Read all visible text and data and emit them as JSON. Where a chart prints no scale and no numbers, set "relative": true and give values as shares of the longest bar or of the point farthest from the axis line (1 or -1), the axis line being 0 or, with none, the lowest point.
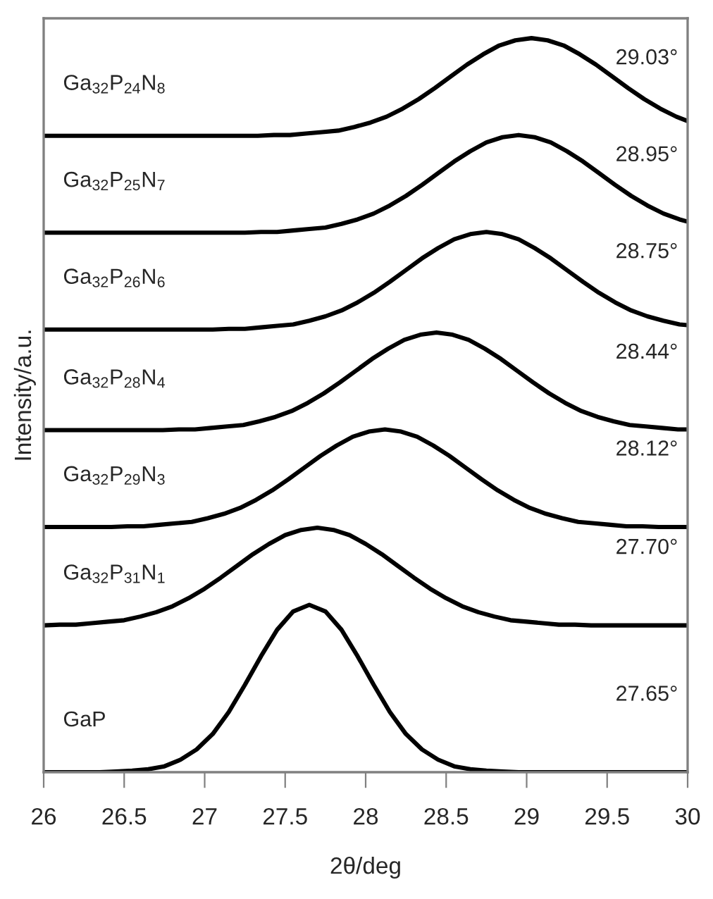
{
  "chart_data": {
    "type": "line",
    "relative": true,
    "xlabel": "2θ/deg",
    "ylabel": "Intensity/a.u.",
    "xlim": [
      26,
      30
    ],
    "xticks": [
      26,
      26.5,
      27,
      27.5,
      28,
      28.5,
      29,
      29.5,
      30
    ],
    "line_style": "solid",
    "series": [
      {
        "name": "Ga$_{32}$P$_{24}$N$_{8}$",
        "color": "#000000",
        "x": [
          26,
          27.33,
          27.43,
          27.53,
          27.63,
          27.73,
          27.83,
          27.93,
          28.03,
          28.13,
          28.23,
          28.33,
          28.43,
          28.53,
          28.63,
          28.73,
          28.83,
          28.93,
          29.03,
          29.13,
          29.23,
          29.33,
          29.43,
          29.53,
          29.63,
          29.73,
          29.83,
          29.93,
          30
        ],
        "values": [
          0.867,
          0.867,
          0.868,
          0.868,
          0.87,
          0.872,
          0.874,
          0.879,
          0.885,
          0.893,
          0.904,
          0.917,
          0.932,
          0.948,
          0.964,
          0.978,
          0.99,
          0.997,
          1.0,
          0.997,
          0.99,
          0.978,
          0.964,
          0.948,
          0.932,
          0.917,
          0.904,
          0.893,
          0.887
        ]
      },
      {
        "name": "Ga$_{32}$P$_{25}$N$_{7}$",
        "color": "#000000",
        "x": [
          26,
          27.25,
          27.35,
          27.45,
          27.55,
          27.65,
          27.75,
          27.85,
          27.95,
          28.05,
          28.15,
          28.25,
          28.35,
          28.45,
          28.55,
          28.65,
          28.75,
          28.85,
          28.95,
          29.05,
          29.15,
          29.25,
          29.35,
          29.45,
          29.55,
          29.65,
          29.75,
          29.85,
          29.95,
          30
        ],
        "values": [
          0.735,
          0.735,
          0.736,
          0.736,
          0.738,
          0.74,
          0.742,
          0.747,
          0.753,
          0.761,
          0.772,
          0.785,
          0.8,
          0.816,
          0.832,
          0.846,
          0.858,
          0.865,
          0.868,
          0.865,
          0.858,
          0.846,
          0.832,
          0.816,
          0.8,
          0.785,
          0.772,
          0.761,
          0.753,
          0.75
        ]
      },
      {
        "name": "Ga$_{32}$P$_{26}$N$_{6}$",
        "color": "#000000",
        "x": [
          26,
          27.05,
          27.15,
          27.25,
          27.35,
          27.45,
          27.55,
          27.65,
          27.75,
          27.85,
          27.95,
          28.05,
          28.15,
          28.25,
          28.35,
          28.45,
          28.55,
          28.65,
          28.75,
          28.85,
          28.95,
          29.05,
          29.15,
          29.25,
          29.35,
          29.45,
          29.55,
          29.65,
          29.75,
          29.85,
          29.95,
          30
        ],
        "values": [
          0.603,
          0.603,
          0.604,
          0.604,
          0.606,
          0.608,
          0.61,
          0.615,
          0.621,
          0.629,
          0.64,
          0.653,
          0.668,
          0.684,
          0.7,
          0.714,
          0.726,
          0.733,
          0.736,
          0.733,
          0.726,
          0.714,
          0.7,
          0.684,
          0.668,
          0.653,
          0.64,
          0.629,
          0.621,
          0.615,
          0.61,
          0.609
        ]
      },
      {
        "name": "Ga$_{32}$P$_{28}$N$_{4}$",
        "color": "#000000",
        "x": [
          26,
          26.74,
          26.84,
          26.94,
          27.04,
          27.14,
          27.24,
          27.34,
          27.44,
          27.54,
          27.64,
          27.74,
          27.84,
          27.94,
          28.04,
          28.14,
          28.24,
          28.34,
          28.44,
          28.54,
          28.64,
          28.74,
          28.84,
          28.94,
          29.04,
          29.14,
          29.24,
          29.34,
          29.44,
          29.54,
          29.64,
          29.74,
          29.84,
          29.94,
          30
        ],
        "values": [
          0.466,
          0.466,
          0.467,
          0.467,
          0.469,
          0.471,
          0.473,
          0.478,
          0.484,
          0.492,
          0.503,
          0.516,
          0.531,
          0.547,
          0.563,
          0.577,
          0.589,
          0.596,
          0.599,
          0.596,
          0.589,
          0.577,
          0.563,
          0.547,
          0.531,
          0.516,
          0.503,
          0.492,
          0.484,
          0.478,
          0.473,
          0.471,
          0.469,
          0.467,
          0.467
        ]
      },
      {
        "name": "Ga$_{32}$P$_{29}$N$_{3}$",
        "color": "#000000",
        "x": [
          26,
          26.42,
          26.52,
          26.62,
          26.72,
          26.82,
          26.92,
          27.02,
          27.12,
          27.22,
          27.32,
          27.42,
          27.52,
          27.62,
          27.72,
          27.82,
          27.92,
          28.02,
          28.12,
          28.22,
          28.32,
          28.42,
          28.52,
          28.62,
          28.72,
          28.82,
          28.92,
          29.02,
          29.12,
          29.22,
          29.32,
          29.42,
          29.52,
          29.62,
          29.72,
          29.82,
          30
        ],
        "values": [
          0.334,
          0.334,
          0.335,
          0.335,
          0.337,
          0.339,
          0.341,
          0.346,
          0.352,
          0.36,
          0.371,
          0.384,
          0.399,
          0.415,
          0.431,
          0.445,
          0.457,
          0.464,
          0.467,
          0.464,
          0.457,
          0.445,
          0.431,
          0.415,
          0.399,
          0.384,
          0.371,
          0.36,
          0.352,
          0.346,
          0.341,
          0.339,
          0.337,
          0.335,
          0.335,
          0.334,
          0.334
        ]
      },
      {
        "name": "Ga$_{32}$P$_{31}$N$_{1}$",
        "color": "#000000",
        "x": [
          26,
          26.1,
          26.2,
          26.3,
          26.4,
          26.5,
          26.6,
          26.7,
          26.8,
          26.9,
          27,
          27.1,
          27.2,
          27.3,
          27.4,
          27.5,
          27.6,
          27.7,
          27.8,
          27.9,
          28,
          28.1,
          28.2,
          28.3,
          28.4,
          28.5,
          28.6,
          28.7,
          28.8,
          28.9,
          29,
          29.1,
          29.2,
          29.3,
          29.4,
          30
        ],
        "values": [
          0.2,
          0.201,
          0.201,
          0.203,
          0.205,
          0.207,
          0.212,
          0.218,
          0.226,
          0.237,
          0.25,
          0.265,
          0.281,
          0.297,
          0.311,
          0.323,
          0.33,
          0.333,
          0.33,
          0.323,
          0.311,
          0.297,
          0.281,
          0.265,
          0.25,
          0.237,
          0.226,
          0.218,
          0.212,
          0.207,
          0.205,
          0.203,
          0.201,
          0.201,
          0.2,
          0.2
        ]
      },
      {
        "name": "GaP",
        "color": "#000000",
        "x": [
          26,
          26.35,
          26.45,
          26.55,
          26.65,
          26.75,
          26.85,
          26.95,
          27.05,
          27.15,
          27.25,
          27.35,
          27.45,
          27.55,
          27.65,
          27.75,
          27.85,
          27.95,
          28.05,
          28.15,
          28.25,
          28.35,
          28.45,
          28.55,
          28.65,
          28.75,
          28.85,
          28.95,
          30
        ],
        "values": [
          0,
          0,
          0.001,
          0.002,
          0.004,
          0.008,
          0.017,
          0.031,
          0.052,
          0.082,
          0.119,
          0.158,
          0.194,
          0.219,
          0.228,
          0.219,
          0.194,
          0.158,
          0.119,
          0.082,
          0.052,
          0.031,
          0.017,
          0.008,
          0.004,
          0.002,
          0.001,
          0,
          0
        ]
      }
    ],
    "annotations": [
      "29.03°",
      "28.95°",
      "28.75°",
      "28.44°",
      "28.12°",
      "27.70°",
      "27.65°"
    ]
  }
}
